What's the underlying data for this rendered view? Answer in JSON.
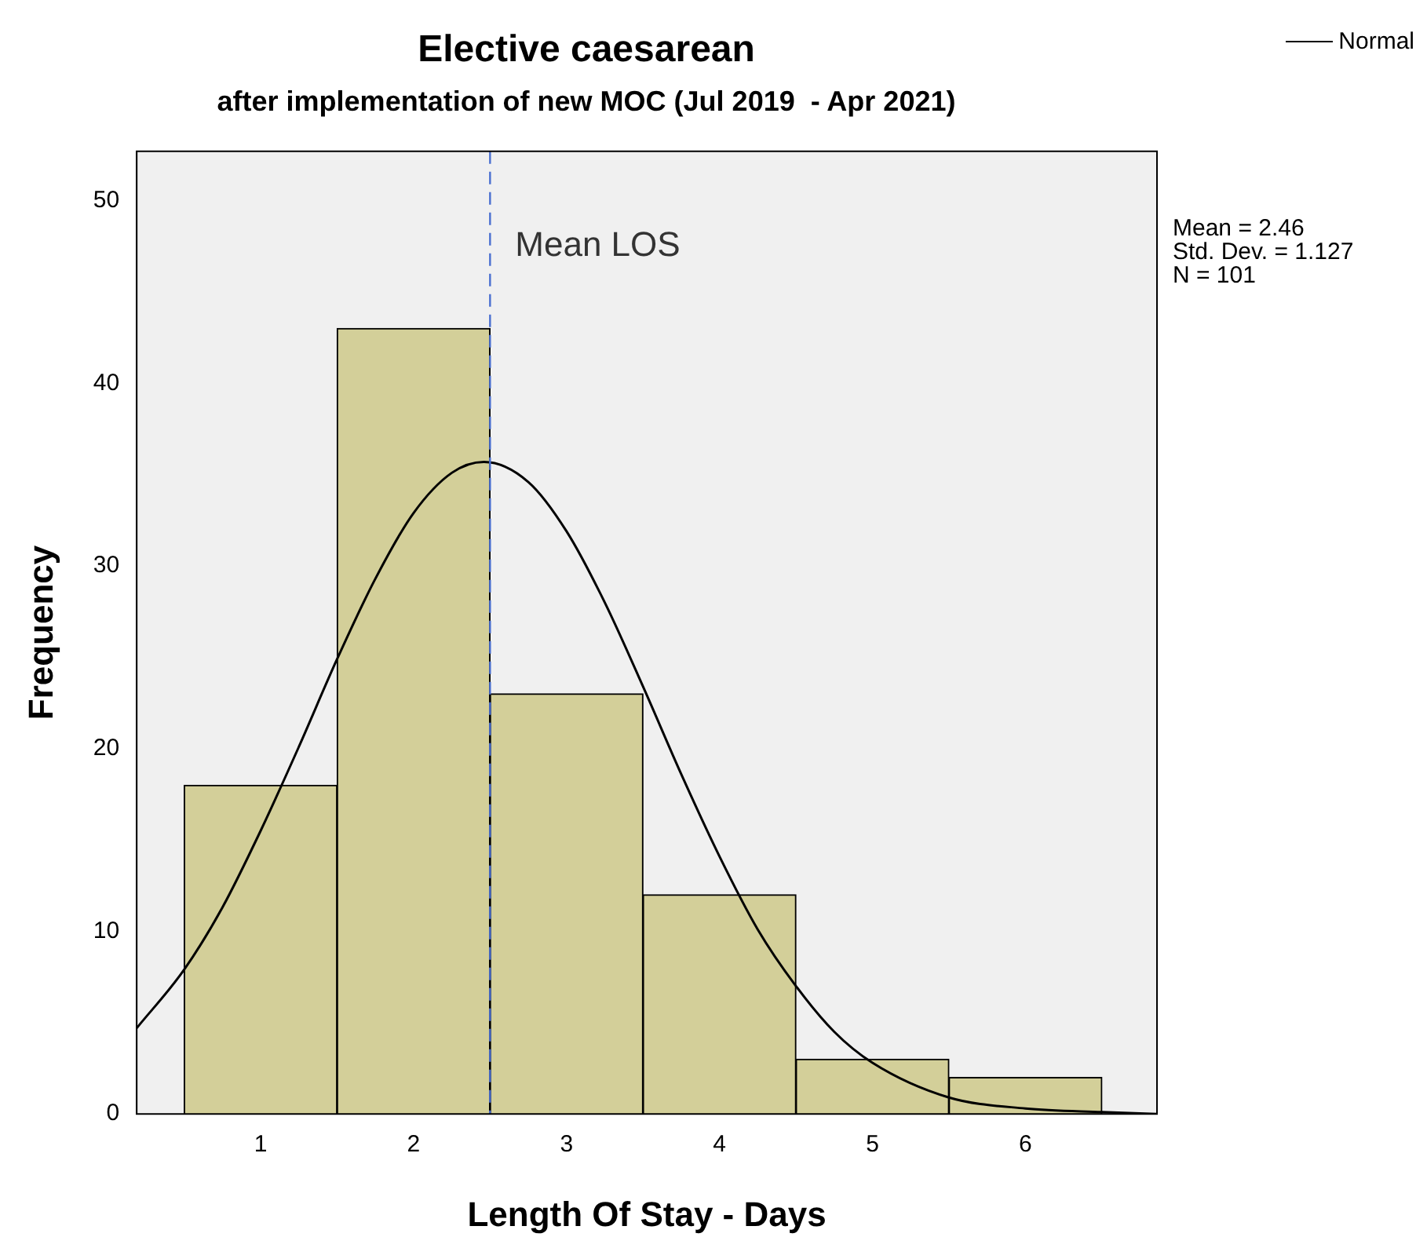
{
  "chart_data": {
    "type": "histogram",
    "title": "Elective caesarean",
    "subtitle": "after implementation of new MOC (Jul 2019  - Apr 2021)",
    "xlabel": "Length Of Stay - Days",
    "ylabel": "Frequency",
    "bins": [
      0.5,
      1.5,
      2.5,
      3.5,
      4.5,
      5.5,
      6.5
    ],
    "values": [
      18,
      43,
      23,
      12,
      3,
      2
    ],
    "color": "#d3cf99",
    "series": [
      {
        "type": "line",
        "name": "Normal",
        "color": "#000000",
        "x": [
          0.19,
          0.5,
          0.75,
          1.0,
          1.25,
          1.5,
          1.75,
          2.0,
          2.25,
          2.46,
          2.75,
          3.0,
          3.25,
          3.5,
          3.75,
          4.0,
          4.25,
          4.5,
          4.75,
          5.0,
          5.5,
          6.0,
          6.5,
          6.86
        ],
        "values": [
          4.7,
          7.9,
          11.3,
          15.5,
          20.1,
          24.9,
          29.3,
          32.9,
          35.1,
          35.7,
          34.6,
          31.9,
          28.0,
          23.4,
          18.6,
          14.1,
          10.1,
          7.0,
          4.5,
          2.8,
          0.9,
          0.3,
          0.1,
          0.0
        ]
      }
    ],
    "xlim": [
      0.19,
      6.86
    ],
    "xticks": [
      1,
      2,
      3,
      4,
      5,
      6
    ],
    "ylim": [
      0,
      52.7
    ],
    "yticks": [
      0,
      10,
      20,
      30,
      40,
      50
    ],
    "grid": false,
    "legend": "top right",
    "ref_lines": [
      {
        "axis": "x",
        "value": 2.5,
        "color": "#4a6fd0",
        "line_style": "dashed"
      }
    ],
    "annotations": [
      {
        "text": "Mean LOS",
        "x": 2.5,
        "y": 47.5
      },
      "Mean = 2.46\nStd. Dev. = 1.127\nN = 101"
    ]
  }
}
